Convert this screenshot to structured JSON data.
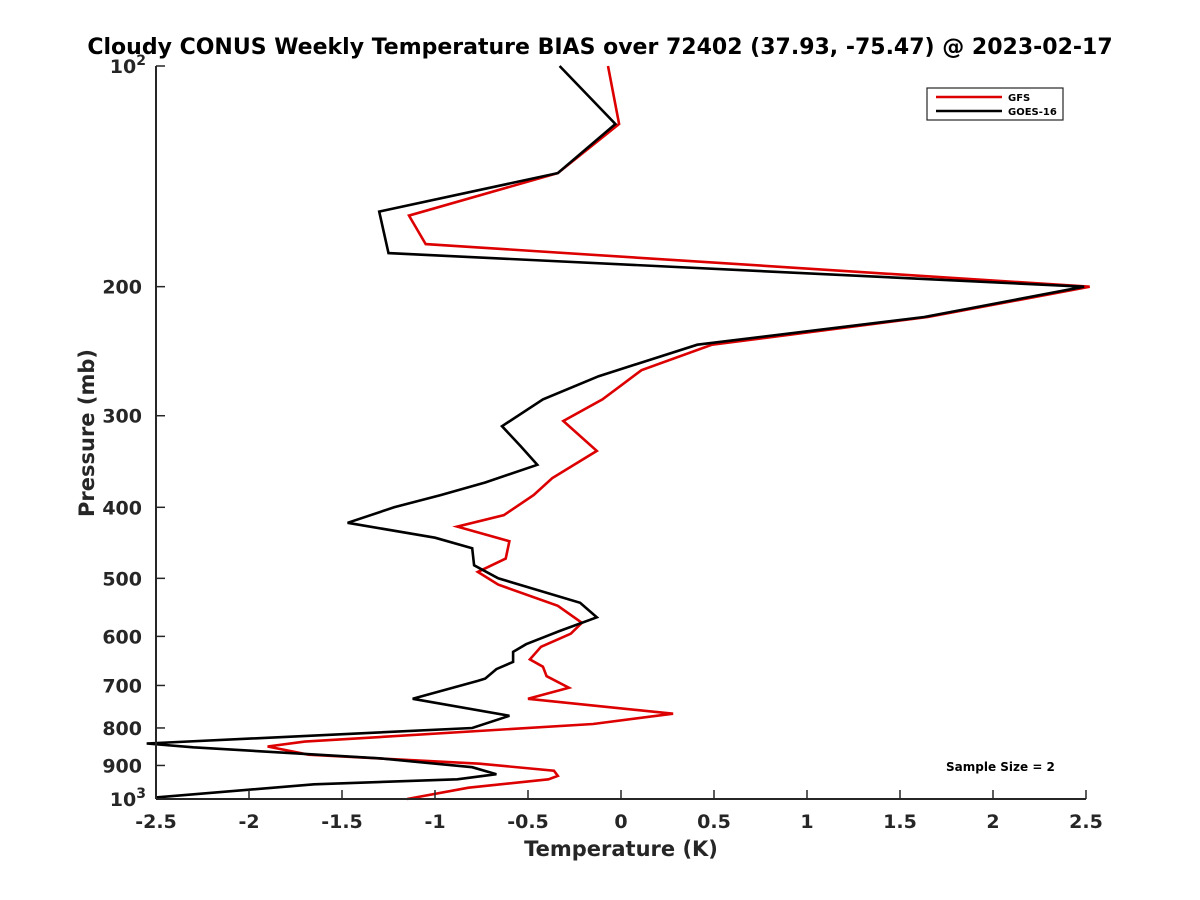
{
  "chart_data": {
    "type": "line",
    "title": "Cloudy CONUS Weekly Temperature BIAS over 72402 (37.93, -75.47) @ 2023-02-17",
    "xlabel": "Temperature (K)",
    "ylabel": "Pressure (mb)",
    "xlim": [
      -2.5,
      2.5
    ],
    "ylim": [
      100,
      1000
    ],
    "y_scale": "log",
    "y_reversed": true,
    "grid": false,
    "legend_position": "top-right",
    "x_ticks": [
      -2.5,
      -2,
      -1.5,
      -1,
      -0.5,
      0,
      0.5,
      1,
      1.5,
      2,
      2.5
    ],
    "x_tick_labels": [
      "-2.5",
      "-2",
      "-1.5",
      "-1",
      "-0.5",
      "0",
      "0.5",
      "1",
      "1.5",
      "2",
      "2.5"
    ],
    "y_ticks": [
      200,
      300,
      400,
      500,
      600,
      700,
      800,
      900
    ],
    "y_tick_labels": [
      "200",
      "300",
      "400",
      "500",
      "600",
      "700",
      "800",
      "900"
    ],
    "y_end_ticks": [
      {
        "value": 100,
        "base": "10",
        "exp": "2"
      },
      {
        "value": 1000,
        "base": "10",
        "exp": "3"
      }
    ],
    "annotation": "Sample Size = 2",
    "series": [
      {
        "name": "GFS",
        "color": "#dd0000",
        "x": [
          -0.07,
          -0.01,
          -0.34,
          -1.14,
          -1.05,
          2.52,
          1.65,
          0.49,
          0.11,
          -0.1,
          -0.31,
          -0.13,
          -0.37,
          -0.47,
          -0.63,
          -0.88,
          -0.6,
          -0.62,
          -0.77,
          -0.66,
          -0.34,
          -0.21,
          -0.27,
          -0.43,
          -0.49,
          -0.42,
          -0.4,
          -0.28,
          -0.5,
          0.28,
          -0.15,
          -1.7,
          -1.9,
          -1.68,
          -0.76,
          -0.36,
          -0.34,
          -0.39,
          -0.82,
          -1.15
        ],
        "y": [
          100,
          120,
          140,
          160,
          175,
          200,
          220,
          240,
          260,
          285,
          305,
          335,
          365,
          385,
          410,
          425,
          445,
          470,
          490,
          510,
          545,
          575,
          595,
          620,
          645,
          660,
          680,
          705,
          730,
          765,
          790,
          835,
          848,
          870,
          895,
          915,
          930,
          940,
          965,
          1000
        ]
      },
      {
        "name": "GOES-16",
        "color": "#000000",
        "x": [
          -0.33,
          -0.03,
          -0.34,
          -1.3,
          -1.25,
          2.49,
          1.63,
          0.41,
          -0.12,
          -0.42,
          -0.64,
          -0.54,
          -0.45,
          -0.73,
          -0.97,
          -1.22,
          -1.47,
          -1.0,
          -0.8,
          -0.79,
          -0.66,
          -0.22,
          -0.13,
          -0.33,
          -0.51,
          -0.58,
          -0.58,
          -0.67,
          -0.73,
          -0.77,
          -1.12,
          -0.6,
          -0.8,
          -2.55,
          -2.3,
          -1.3,
          -0.8,
          -0.67,
          -0.88,
          -1.65,
          -2.5
        ],
        "y": [
          100,
          120,
          140,
          158,
          180,
          200,
          220,
          240,
          265,
          285,
          310,
          330,
          350,
          370,
          385,
          400,
          420,
          440,
          455,
          480,
          500,
          540,
          565,
          590,
          615,
          630,
          650,
          665,
          685,
          690,
          730,
          770,
          800,
          840,
          850,
          880,
          905,
          925,
          940,
          955,
          995
        ]
      }
    ]
  }
}
